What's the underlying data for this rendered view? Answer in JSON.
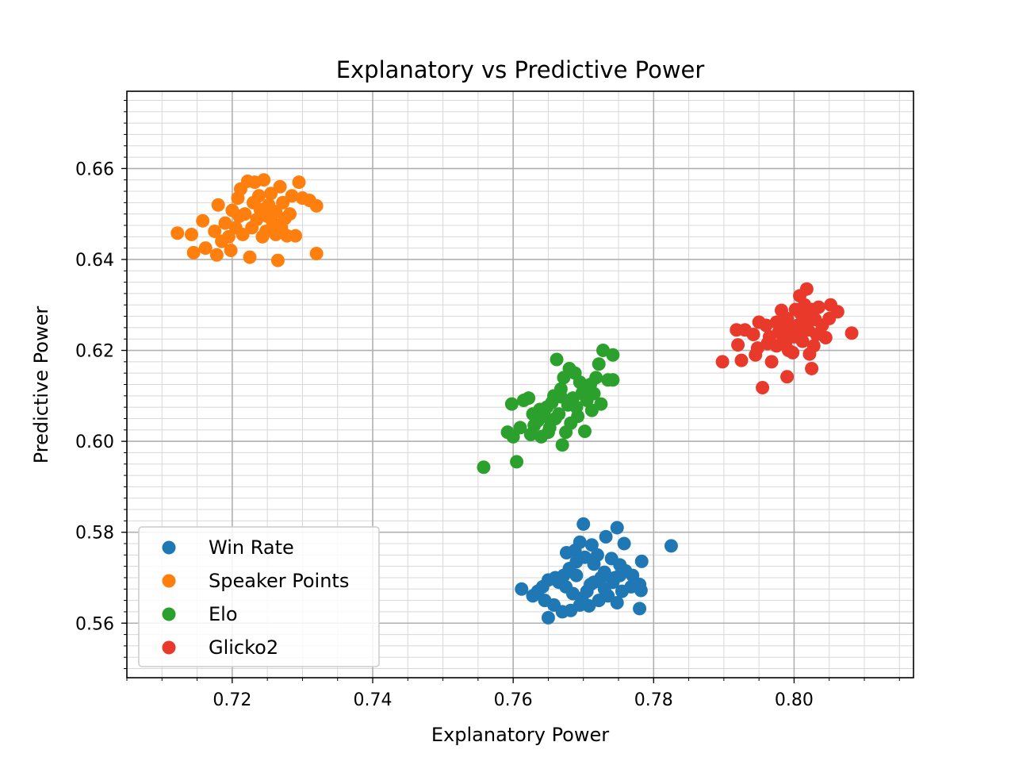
{
  "chart_data": {
    "type": "scatter",
    "title": "Explanatory vs Predictive Power",
    "xlabel": "Explanatory Power",
    "ylabel": "Predictive Power",
    "xlim": [
      0.705,
      0.817
    ],
    "ylim": [
      0.548,
      0.677
    ],
    "x_ticks": [
      0.72,
      0.74,
      0.76,
      0.78,
      0.8
    ],
    "x_tick_labels": [
      "0.72",
      "0.74",
      "0.76",
      "0.78",
      "0.80"
    ],
    "y_ticks": [
      0.56,
      0.58,
      0.6,
      0.62,
      0.64,
      0.66
    ],
    "y_tick_labels": [
      "0.56",
      "0.58",
      "0.60",
      "0.62",
      "0.64",
      "0.66"
    ],
    "x_minor_step": 0.005,
    "y_minor_step": 0.0025,
    "grid": true,
    "minor_grid": true,
    "legend_position": "bottom-left",
    "series": [
      {
        "name": "Win Rate",
        "color": "#1f77b4",
        "points": [
          [
            0.77,
            0.5818
          ],
          [
            0.7748,
            0.581
          ],
          [
            0.7825,
            0.577
          ],
          [
            0.7783,
            0.5736
          ],
          [
            0.7758,
            0.5775
          ],
          [
            0.7732,
            0.579
          ],
          [
            0.7712,
            0.5772
          ],
          [
            0.7688,
            0.576
          ],
          [
            0.7676,
            0.5755
          ],
          [
            0.7695,
            0.5778
          ],
          [
            0.772,
            0.575
          ],
          [
            0.774,
            0.5742
          ],
          [
            0.7752,
            0.5728
          ],
          [
            0.776,
            0.5715
          ],
          [
            0.777,
            0.5705
          ],
          [
            0.7745,
            0.57
          ],
          [
            0.773,
            0.5712
          ],
          [
            0.7715,
            0.573
          ],
          [
            0.7702,
            0.5745
          ],
          [
            0.769,
            0.5735
          ],
          [
            0.768,
            0.572
          ],
          [
            0.7672,
            0.5705
          ],
          [
            0.7665,
            0.569
          ],
          [
            0.766,
            0.57
          ],
          [
            0.765,
            0.5695
          ],
          [
            0.7642,
            0.568
          ],
          [
            0.7635,
            0.567
          ],
          [
            0.7612,
            0.5675
          ],
          [
            0.7628,
            0.566
          ],
          [
            0.7645,
            0.565
          ],
          [
            0.7658,
            0.564
          ],
          [
            0.767,
            0.5625
          ],
          [
            0.7682,
            0.5628
          ],
          [
            0.7695,
            0.564
          ],
          [
            0.7708,
            0.5638
          ],
          [
            0.7722,
            0.565
          ],
          [
            0.7735,
            0.566
          ],
          [
            0.7748,
            0.5645
          ],
          [
            0.7755,
            0.567
          ],
          [
            0.7768,
            0.568
          ],
          [
            0.778,
            0.5685
          ],
          [
            0.7782,
            0.5672
          ],
          [
            0.778,
            0.5632
          ],
          [
            0.765,
            0.5612
          ],
          [
            0.7705,
            0.567
          ],
          [
            0.7715,
            0.569
          ],
          [
            0.7725,
            0.57
          ],
          [
            0.769,
            0.5705
          ],
          [
            0.7675,
            0.568
          ],
          [
            0.7685,
            0.5665
          ],
          [
            0.7698,
            0.5655
          ],
          [
            0.771,
            0.5685
          ],
          [
            0.773,
            0.5675
          ],
          [
            0.7742,
            0.569
          ],
          [
            0.7752,
            0.5705
          ]
        ]
      },
      {
        "name": "Speaker Points",
        "color": "#ff7f0e",
        "points": [
          [
            0.7122,
            0.6458
          ],
          [
            0.7142,
            0.6455
          ],
          [
            0.7158,
            0.6485
          ],
          [
            0.7145,
            0.6415
          ],
          [
            0.7162,
            0.6425
          ],
          [
            0.7175,
            0.6462
          ],
          [
            0.7185,
            0.644
          ],
          [
            0.7178,
            0.641
          ],
          [
            0.7198,
            0.642
          ],
          [
            0.719,
            0.648
          ],
          [
            0.718,
            0.652
          ],
          [
            0.72,
            0.6508
          ],
          [
            0.721,
            0.6495
          ],
          [
            0.7205,
            0.647
          ],
          [
            0.7215,
            0.6455
          ],
          [
            0.7225,
            0.6405
          ],
          [
            0.7212,
            0.6555
          ],
          [
            0.7222,
            0.6572
          ],
          [
            0.7232,
            0.657
          ],
          [
            0.7245,
            0.6575
          ],
          [
            0.7238,
            0.654
          ],
          [
            0.723,
            0.6525
          ],
          [
            0.724,
            0.651
          ],
          [
            0.725,
            0.6495
          ],
          [
            0.7258,
            0.648
          ],
          [
            0.7248,
            0.6462
          ],
          [
            0.7262,
            0.6455
          ],
          [
            0.727,
            0.647
          ],
          [
            0.7265,
            0.6398
          ],
          [
            0.7278,
            0.6452
          ],
          [
            0.7282,
            0.65
          ],
          [
            0.7272,
            0.6525
          ],
          [
            0.7285,
            0.654
          ],
          [
            0.7295,
            0.657
          ],
          [
            0.73,
            0.6535
          ],
          [
            0.731,
            0.653
          ],
          [
            0.732,
            0.6518
          ],
          [
            0.732,
            0.6413
          ],
          [
            0.729,
            0.6452
          ],
          [
            0.7268,
            0.656
          ],
          [
            0.7255,
            0.6545
          ],
          [
            0.7235,
            0.6488
          ],
          [
            0.7228,
            0.647
          ],
          [
            0.7218,
            0.65
          ],
          [
            0.7243,
            0.645
          ],
          [
            0.7252,
            0.652
          ],
          [
            0.7262,
            0.6505
          ],
          [
            0.7275,
            0.649
          ],
          [
            0.7208,
            0.6535
          ],
          [
            0.7195,
            0.645
          ]
        ]
      },
      {
        "name": "Elo",
        "color": "#2ca02c",
        "points": [
          [
            0.7558,
            0.5943
          ],
          [
            0.7605,
            0.5955
          ],
          [
            0.7592,
            0.602
          ],
          [
            0.76,
            0.601
          ],
          [
            0.761,
            0.603
          ],
          [
            0.7598,
            0.6082
          ],
          [
            0.7615,
            0.609
          ],
          [
            0.7622,
            0.6095
          ],
          [
            0.7628,
            0.606
          ],
          [
            0.7635,
            0.6045
          ],
          [
            0.7625,
            0.6015
          ],
          [
            0.764,
            0.601
          ],
          [
            0.7652,
            0.603
          ],
          [
            0.766,
            0.605
          ],
          [
            0.7648,
            0.6075
          ],
          [
            0.7658,
            0.61
          ],
          [
            0.7668,
            0.6115
          ],
          [
            0.7672,
            0.614
          ],
          [
            0.768,
            0.616
          ],
          [
            0.7662,
            0.618
          ],
          [
            0.7688,
            0.615
          ],
          [
            0.7695,
            0.613
          ],
          [
            0.77,
            0.6112
          ],
          [
            0.771,
            0.6125
          ],
          [
            0.7718,
            0.614
          ],
          [
            0.7722,
            0.617
          ],
          [
            0.7728,
            0.62
          ],
          [
            0.7742,
            0.619
          ],
          [
            0.7735,
            0.6135
          ],
          [
            0.7742,
            0.6135
          ],
          [
            0.7725,
            0.6082
          ],
          [
            0.7702,
            0.6022
          ],
          [
            0.7712,
            0.6068
          ],
          [
            0.7692,
            0.6055
          ],
          [
            0.7682,
            0.604
          ],
          [
            0.7675,
            0.602
          ],
          [
            0.767,
            0.5992
          ],
          [
            0.7665,
            0.606
          ],
          [
            0.7678,
            0.608
          ],
          [
            0.7685,
            0.6095
          ],
          [
            0.769,
            0.6075
          ],
          [
            0.7705,
            0.609
          ],
          [
            0.7715,
            0.6105
          ],
          [
            0.765,
            0.602
          ],
          [
            0.7645,
            0.6055
          ],
          [
            0.7655,
            0.6085
          ],
          [
            0.7638,
            0.607
          ],
          [
            0.763,
            0.6035
          ],
          [
            0.7668,
            0.6098
          ],
          [
            0.7698,
            0.6105
          ]
        ]
      },
      {
        "name": "Glicko2",
        "color": "#e8392b",
        "points": [
          [
            0.7898,
            0.6175
          ],
          [
            0.792,
            0.6212
          ],
          [
            0.7918,
            0.6245
          ],
          [
            0.793,
            0.6245
          ],
          [
            0.7925,
            0.6178
          ],
          [
            0.7945,
            0.619
          ],
          [
            0.7942,
            0.6235
          ],
          [
            0.795,
            0.6262
          ],
          [
            0.796,
            0.6255
          ],
          [
            0.7965,
            0.623
          ],
          [
            0.7955,
            0.6118
          ],
          [
            0.7968,
            0.6175
          ],
          [
            0.7975,
            0.621
          ],
          [
            0.7978,
            0.624
          ],
          [
            0.7982,
            0.6288
          ],
          [
            0.799,
            0.627
          ],
          [
            0.7995,
            0.625
          ],
          [
            0.7988,
            0.6218
          ],
          [
            0.7992,
            0.62
          ],
          [
            0.799,
            0.6142
          ],
          [
            0.8,
            0.623
          ],
          [
            0.8005,
            0.6255
          ],
          [
            0.801,
            0.628
          ],
          [
            0.8015,
            0.63
          ],
          [
            0.8008,
            0.632
          ],
          [
            0.8018,
            0.6335
          ],
          [
            0.8025,
            0.629
          ],
          [
            0.803,
            0.6268
          ],
          [
            0.802,
            0.6245
          ],
          [
            0.8012,
            0.622
          ],
          [
            0.8022,
            0.6192
          ],
          [
            0.8025,
            0.616
          ],
          [
            0.8032,
            0.6235
          ],
          [
            0.804,
            0.6255
          ],
          [
            0.8045,
            0.6228
          ],
          [
            0.805,
            0.627
          ],
          [
            0.8052,
            0.63
          ],
          [
            0.8062,
            0.6285
          ],
          [
            0.8082,
            0.6238
          ],
          [
            0.7998,
            0.6195
          ],
          [
            0.7985,
            0.6228
          ],
          [
            0.7975,
            0.6262
          ],
          [
            0.8002,
            0.629
          ],
          [
            0.8035,
            0.6295
          ],
          [
            0.7962,
            0.6215
          ],
          [
            0.801,
            0.6245
          ],
          [
            0.8028,
            0.621
          ],
          [
            0.7948,
            0.6205
          ],
          [
            0.8018,
            0.6272
          ],
          [
            0.7982,
            0.625
          ]
        ]
      }
    ]
  }
}
